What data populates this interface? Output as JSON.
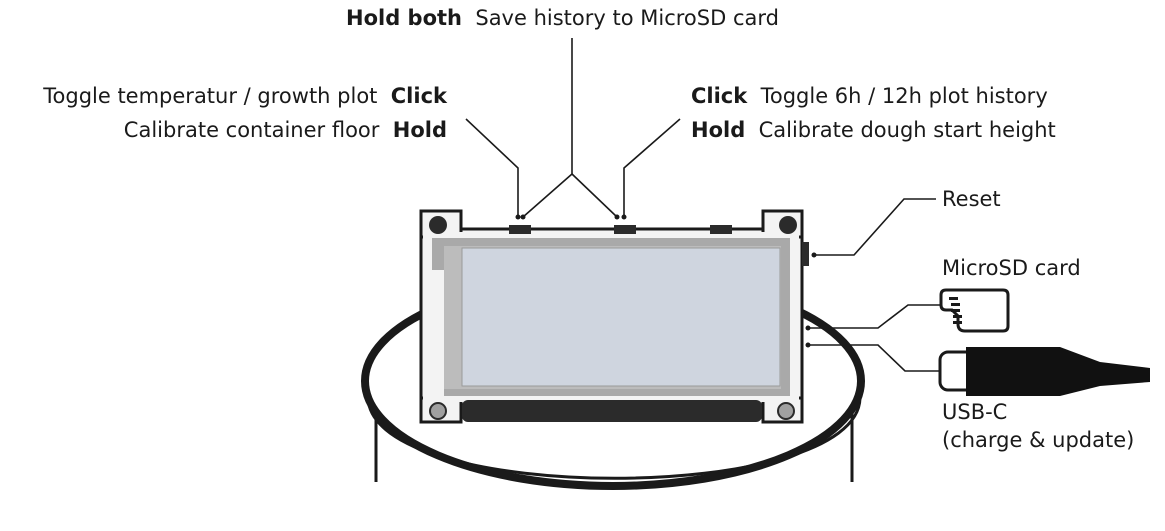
{
  "labels": {
    "top": {
      "action": "Hold both",
      "desc": "Save history to MicroSD card"
    },
    "left_click": {
      "desc": "Toggle temperatur / growth plot",
      "action": "Click"
    },
    "left_hold": {
      "desc": "Calibrate container floor",
      "action": "Hold"
    },
    "right_click": {
      "action": "Click",
      "desc": "Toggle 6h / 12h plot history"
    },
    "right_hold": {
      "action": "Hold",
      "desc": "Calibrate dough start height"
    },
    "reset": "Reset",
    "microsd": "MicroSD card",
    "usbc_line1": "USB-C",
    "usbc_line2": "(charge & update)"
  },
  "colors": {
    "ink": "#1a1a1a",
    "board": "#f3f3f3",
    "frame": "#a9a9a9",
    "screen": "#cfd5df",
    "dark": "#2b2b2b"
  }
}
